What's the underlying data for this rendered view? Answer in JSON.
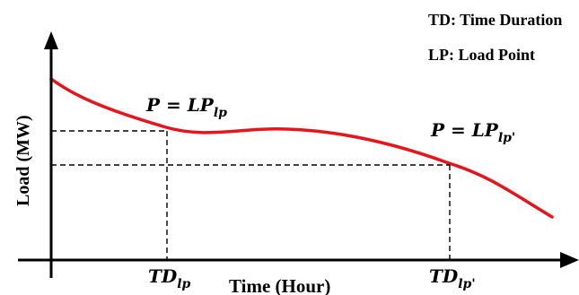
{
  "legend": {
    "td": "TD: Time Duration",
    "lp": "LP: Load Point"
  },
  "axes": {
    "x_label": "Time (Hour)",
    "y_label": "Load (MW)"
  },
  "points": [
    {
      "p_label": "P = LP",
      "p_sub": "lp",
      "td_label": "TD",
      "td_sub": "lp"
    },
    {
      "p_label": "P = LP",
      "p_sub": "lp'",
      "td_label": "TD",
      "td_sub": "lp'"
    }
  ],
  "colors": {
    "curve": "#e8141b",
    "axis": "#000000",
    "dashed": "#000000"
  },
  "icons": {
    "x_arrow": "arrow-right-icon",
    "y_arrow": "arrow-up-icon"
  }
}
